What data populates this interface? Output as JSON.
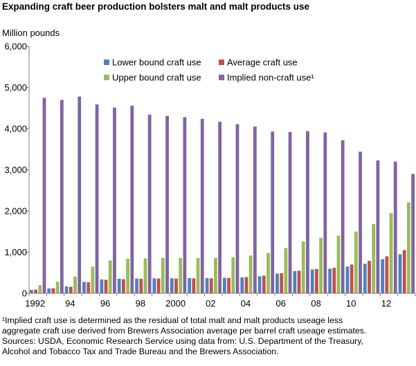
{
  "chart_data": {
    "type": "bar",
    "title": "Expanding craft beer production bolsters malt and malt products use",
    "ylabel": "Million pounds",
    "xlabel": "",
    "ylim": [
      0,
      6000
    ],
    "yticks": [
      0,
      1000,
      2000,
      3000,
      4000,
      5000,
      6000
    ],
    "ytick_labels": [
      "0",
      "1,000",
      "2,000",
      "3,000",
      "4,000",
      "5,000",
      "6,000"
    ],
    "grid": false,
    "legend_position": "top-right",
    "categories": [
      "1992",
      "1993",
      "1994",
      "1995",
      "1996",
      "1997",
      "1998",
      "1999",
      "2000",
      "2001",
      "2002",
      "2003",
      "2004",
      "2005",
      "2006",
      "2007",
      "2008",
      "2009",
      "2010",
      "2011",
      "2012",
      "2013"
    ],
    "xtick_labels": [
      "1992",
      "",
      "94",
      "",
      "96",
      "",
      "98",
      "",
      "2000",
      "",
      "02",
      "",
      "04",
      "",
      "06",
      "",
      "08",
      "",
      "10",
      "",
      "12",
      ""
    ],
    "series": [
      {
        "name": "Lower bound craft use",
        "color": "#4F81BD",
        "values": [
          85,
          120,
          170,
          280,
          340,
          355,
          360,
          365,
          365,
          370,
          370,
          380,
          390,
          415,
          480,
          540,
          580,
          600,
          650,
          720,
          830,
          950
        ]
      },
      {
        "name": "Average craft use",
        "color": "#C0504D",
        "values": [
          90,
          125,
          160,
          270,
          330,
          345,
          355,
          360,
          360,
          365,
          365,
          375,
          395,
          430,
          490,
          550,
          590,
          620,
          700,
          790,
          900,
          1050
        ]
      },
      {
        "name": "Upper bound craft use",
        "color": "#9BBB59",
        "values": [
          200,
          280,
          410,
          650,
          800,
          840,
          850,
          860,
          860,
          860,
          860,
          880,
          920,
          980,
          1100,
          1260,
          1350,
          1400,
          1500,
          1680,
          1950,
          2210
        ]
      },
      {
        "name": "Implied non-craft use¹",
        "color": "#8064A2",
        "values": [
          4750,
          4700,
          4780,
          4590,
          4510,
          4560,
          4340,
          4310,
          4280,
          4240,
          4170,
          4110,
          4050,
          3930,
          3920,
          3940,
          3910,
          3720,
          3440,
          3230,
          3200,
          2900
        ]
      }
    ]
  },
  "notes": [
    "¹Implied craft use is determined as the residual of total malt and malt products useage less",
    "aggregate craft use derived from Brewers Association average per barrel craft useage estimates.",
    "Sources: USDA, Economic Research Service using data from: U.S. Department of the Treasury,",
    "Alcohol and Tobacco Tax and Trade Bureau and the Brewers Association."
  ]
}
